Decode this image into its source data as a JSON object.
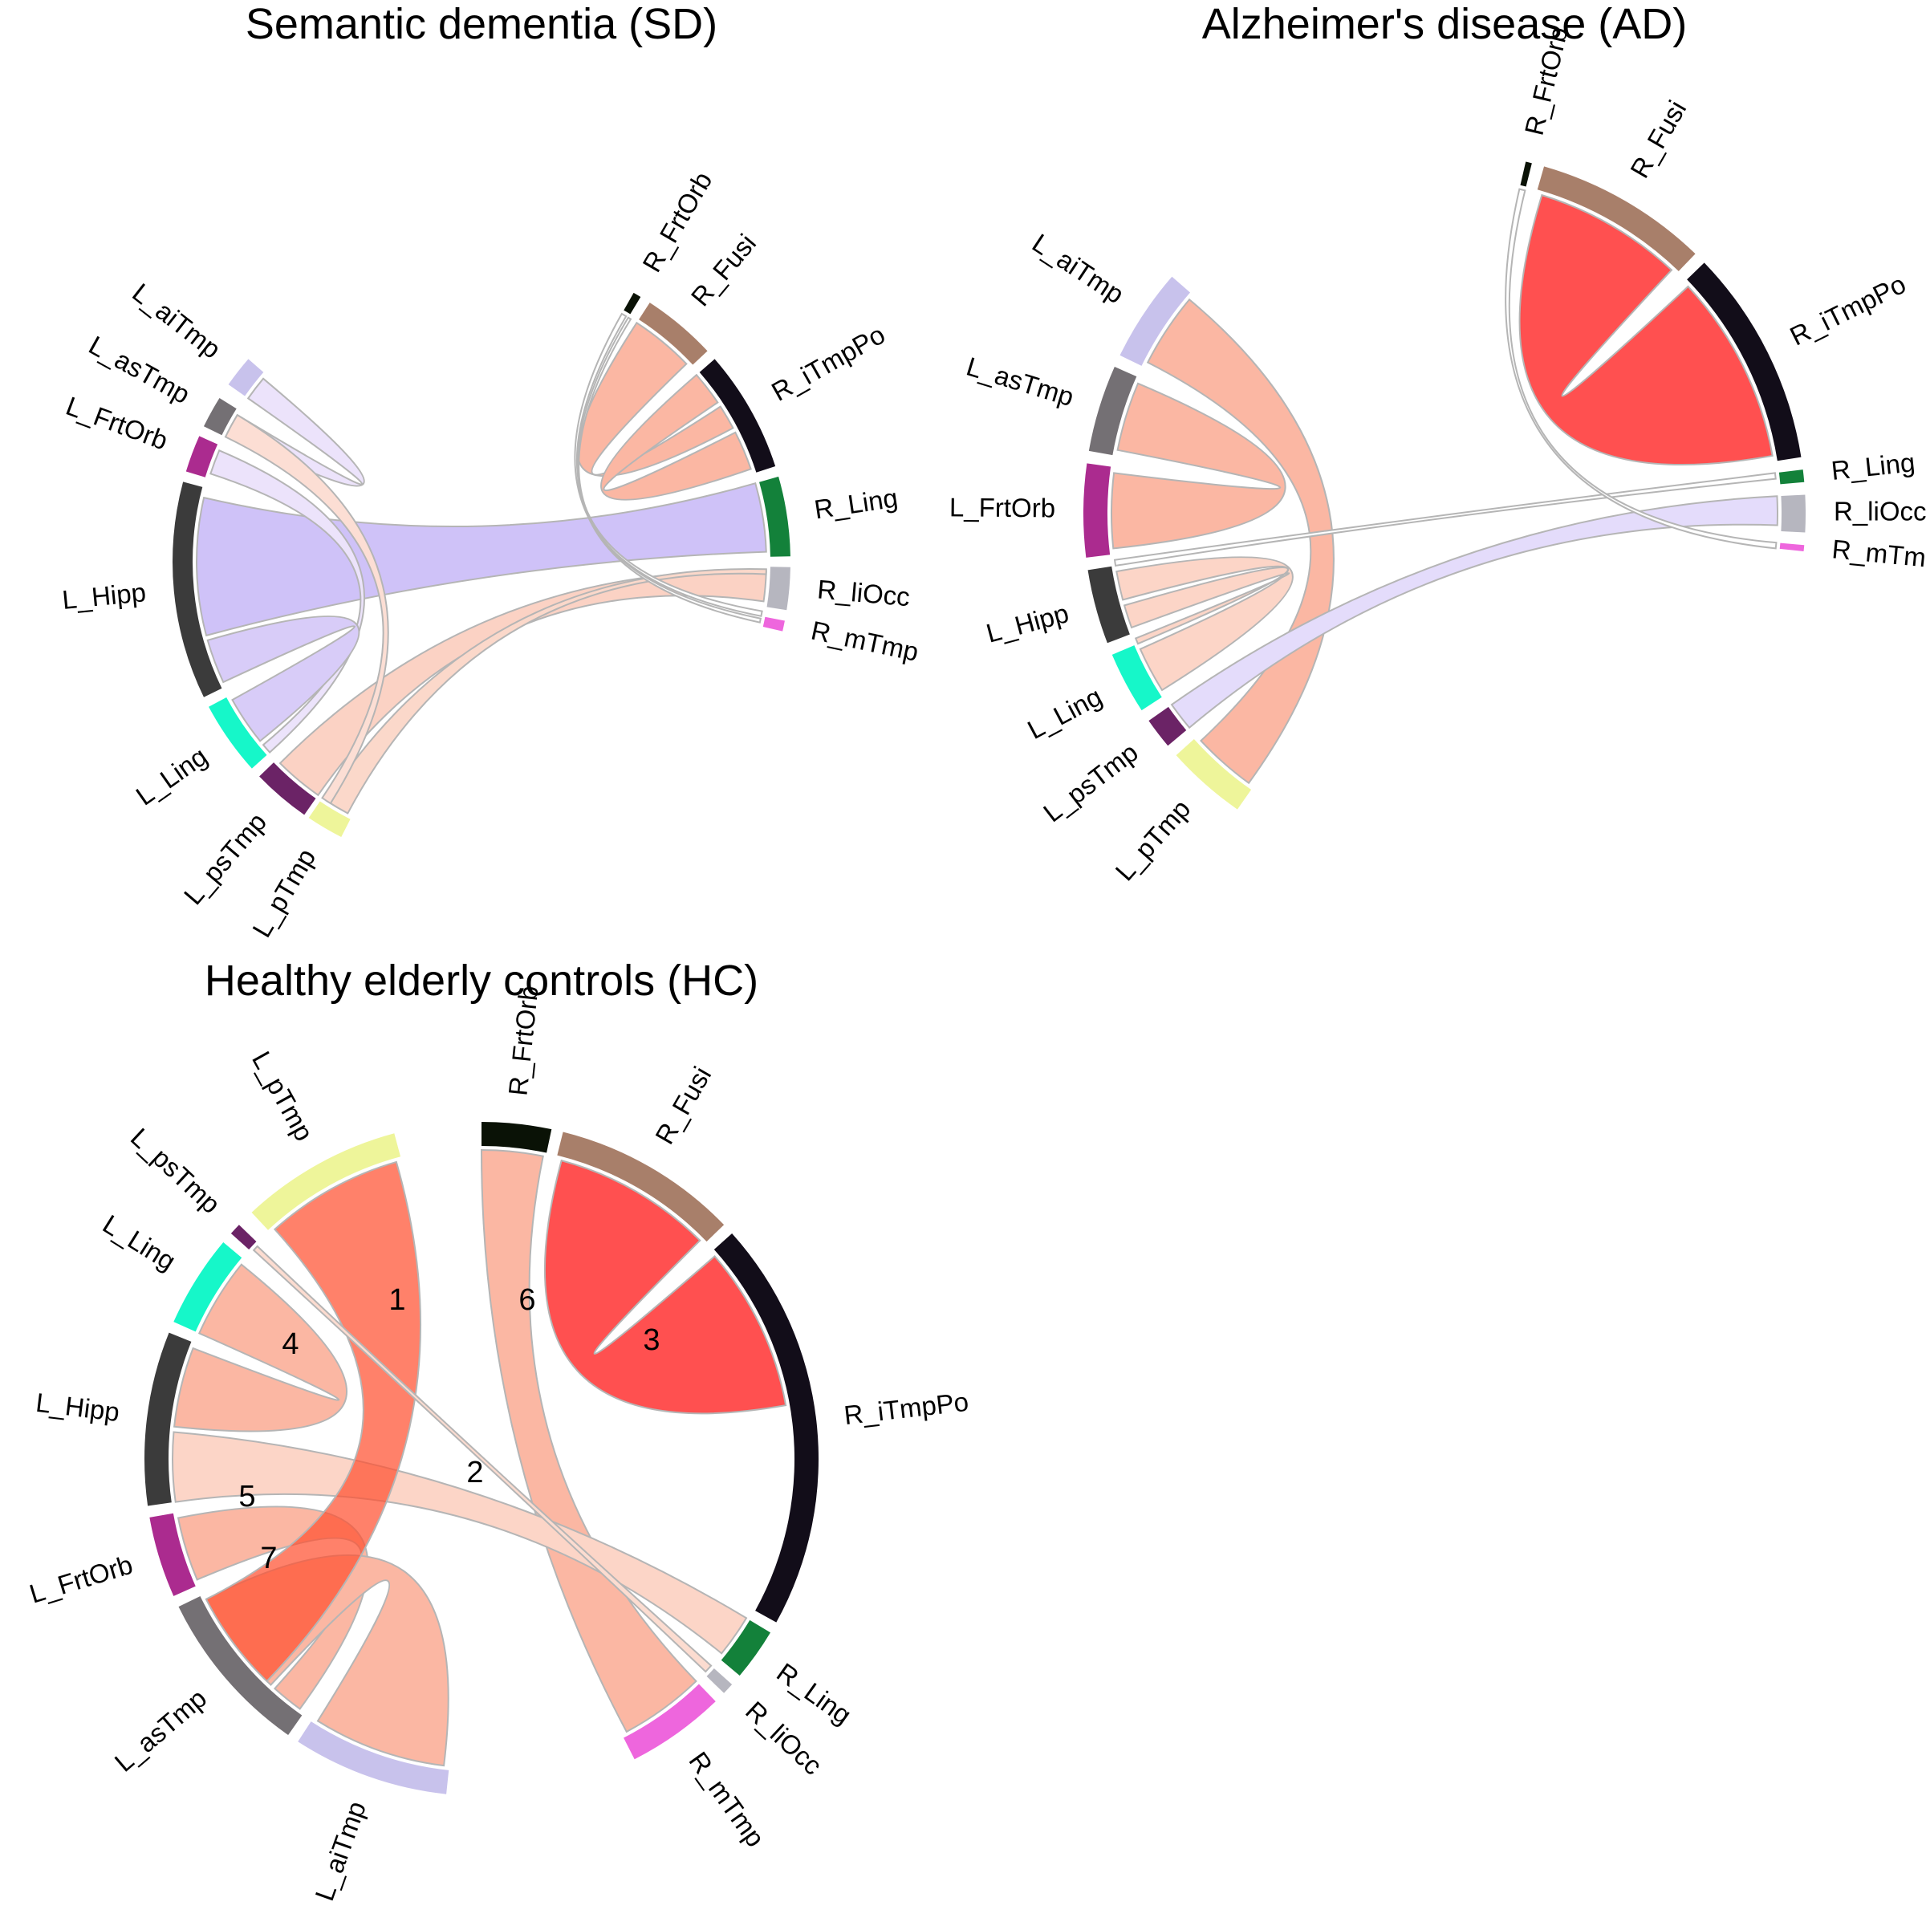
{
  "figures": [
    {
      "id": "sd",
      "title": "Semantic dementia (SD)",
      "sectors": [
        {
          "name": "L_pTmp",
          "color": "#eef59a"
        },
        {
          "name": "L_psTmp",
          "color": "#6b2366"
        },
        {
          "name": "L_Ling",
          "color": "#16f7c9"
        },
        {
          "name": "L_Hipp",
          "color": "#3b3b3b"
        },
        {
          "name": "L_FrtOrb",
          "color": "#ab2b8f"
        },
        {
          "name": "L_asTmp",
          "color": "#747074"
        },
        {
          "name": "L_aiTmp",
          "color": "#c8c2ec"
        },
        {
          "name": "R_FrtOrb",
          "color": "#0a1206"
        },
        {
          "name": "R_Fusi",
          "color": "#a87f6a"
        },
        {
          "name": "R_iTmpPo",
          "color": "#120d19"
        },
        {
          "name": "R_Ling",
          "color": "#13813a"
        },
        {
          "name": "R_liOcc",
          "color": "#b6b6bf"
        },
        {
          "name": "R_mTmp",
          "color": "#ee66dd"
        }
      ],
      "links": [
        {
          "color": "#cfc2f8"
        },
        {
          "color": "#fbd2c4"
        },
        {
          "color": "#fbd8ca"
        },
        {
          "color": "#ece3fb"
        },
        {
          "color": "#d8ccf8"
        },
        {
          "color": "#ece3fb"
        },
        {
          "color": "#fcded4"
        },
        {
          "color": "#fbb7a3"
        },
        {
          "color": "#fbb7a3"
        },
        {
          "color": "#ffffff"
        },
        {
          "color": "#ffffff"
        }
      ]
    },
    {
      "id": "ad",
      "title": "Alzheimer's disease (AD)",
      "sectors": [
        {
          "name": "L_pTmp",
          "color": "#eef59a"
        },
        {
          "name": "L_psTmp",
          "color": "#6b2366"
        },
        {
          "name": "L_Ling",
          "color": "#16f7c9"
        },
        {
          "name": "L_Hipp",
          "color": "#3b3b3b"
        },
        {
          "name": "L_FrtOrb",
          "color": "#ab2b8f"
        },
        {
          "name": "L_asTmp",
          "color": "#747074"
        },
        {
          "name": "L_aiTmp",
          "color": "#c8c2ec"
        },
        {
          "name": "R_FrtOrb",
          "color": "#0a1206"
        },
        {
          "name": "R_Fusi",
          "color": "#a87f6a"
        },
        {
          "name": "R_iTmpPo",
          "color": "#120d19"
        },
        {
          "name": "R_Ling",
          "color": "#13813a"
        },
        {
          "name": "R_liOcc",
          "color": "#b6b6bf"
        },
        {
          "name": "R_mTmp",
          "color": "#ee66dd"
        }
      ],
      "links": [
        {
          "color": "#fbb7a3"
        },
        {
          "color": "#fbb7a3"
        },
        {
          "color": "#fcd5c7"
        },
        {
          "color": "#fcd5c7"
        },
        {
          "color": "#ff5050"
        },
        {
          "color": "#e4dcfb"
        },
        {
          "color": "#ffffff"
        },
        {
          "color": "#ffffff"
        }
      ]
    },
    {
      "id": "hc",
      "title": "Healthy elderly controls (HC)",
      "sectors": [
        {
          "name": "L_pTmp",
          "color": "#eef59a"
        },
        {
          "name": "L_psTmp",
          "color": "#6b2366"
        },
        {
          "name": "L_Ling",
          "color": "#16f7c9"
        },
        {
          "name": "L_Hipp",
          "color": "#3b3b3b"
        },
        {
          "name": "L_FrtOrb",
          "color": "#ab2b8f"
        },
        {
          "name": "L_asTmp",
          "color": "#747074"
        },
        {
          "name": "L_aiTmp",
          "color": "#c8c2ec"
        },
        {
          "name": "R_FrtOrb",
          "color": "#0a1206"
        },
        {
          "name": "R_Fusi",
          "color": "#a87f6a"
        },
        {
          "name": "R_iTmpPo",
          "color": "#120d19"
        },
        {
          "name": "R_Ling",
          "color": "#13813a"
        },
        {
          "name": "R_liOcc",
          "color": "#b6b6bf"
        },
        {
          "name": "R_mTmp",
          "color": "#ee66dd"
        }
      ],
      "links": [
        {
          "color": "#ff5050",
          "label": "3"
        },
        {
          "color": "#fbb7a3",
          "label": "6"
        },
        {
          "color": "#fbb7a3",
          "label": "4"
        },
        {
          "color": "#fcd5c7",
          "label": "5"
        },
        {
          "color": "#fbb7a3",
          "label": "7"
        },
        {
          "color": "#fbb7a3",
          "label": ""
        },
        {
          "color": "#ff5030",
          "label": "1",
          "opacity": 0.72
        },
        {
          "color": "#fcdcd0",
          "label": "2"
        }
      ]
    }
  ]
}
